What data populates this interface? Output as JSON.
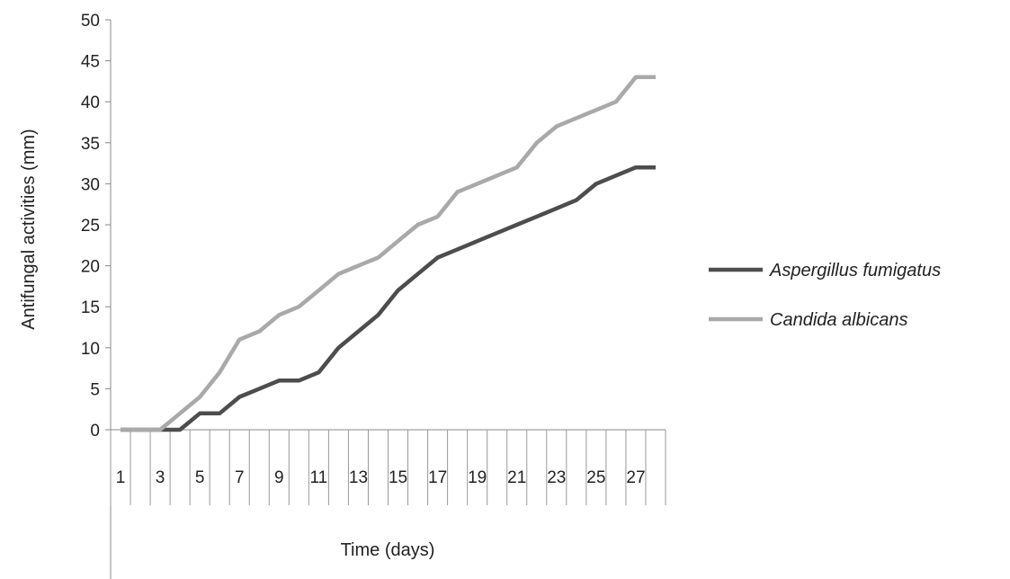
{
  "chart_data": {
    "type": "line",
    "xlabel": "Time (days)",
    "ylabel": "Antifungal activities (mm)",
    "ylim": [
      0,
      50
    ],
    "yticks": [
      "0",
      "5",
      "10",
      "15",
      "20",
      "25",
      "30",
      "35",
      "40",
      "45",
      "50"
    ],
    "x": [
      1,
      2,
      3,
      4,
      5,
      6,
      7,
      8,
      9,
      10,
      11,
      12,
      13,
      14,
      15,
      16,
      17,
      18,
      19,
      20,
      21,
      22,
      23,
      24,
      25,
      26,
      27,
      28
    ],
    "xtick_labels": [
      "1",
      "3",
      "5",
      "7",
      "9",
      "11",
      "13",
      "15",
      "17",
      "19",
      "21",
      "23",
      "25",
      "27"
    ],
    "xtick_values": [
      1,
      3,
      5,
      7,
      9,
      11,
      13,
      15,
      17,
      19,
      21,
      23,
      25,
      27
    ],
    "grid": false,
    "legend": "right",
    "series": [
      {
        "name": "Aspergillus fumigatus",
        "color": "#4d4d4d",
        "values": [
          0,
          0,
          0,
          0,
          2,
          2,
          4,
          5,
          6,
          6,
          7,
          10,
          12,
          14,
          17,
          19,
          21,
          22,
          23,
          24,
          25,
          26,
          27,
          28,
          30,
          31,
          32,
          32
        ]
      },
      {
        "name": "Candida albicans",
        "color": "#a9a9a9",
        "values": [
          0,
          0,
          0,
          2,
          4,
          7,
          11,
          12,
          14,
          15,
          17,
          19,
          20,
          21,
          23,
          25,
          26,
          29,
          30,
          31,
          32,
          35,
          37,
          38,
          39,
          40,
          43,
          43
        ]
      }
    ]
  }
}
